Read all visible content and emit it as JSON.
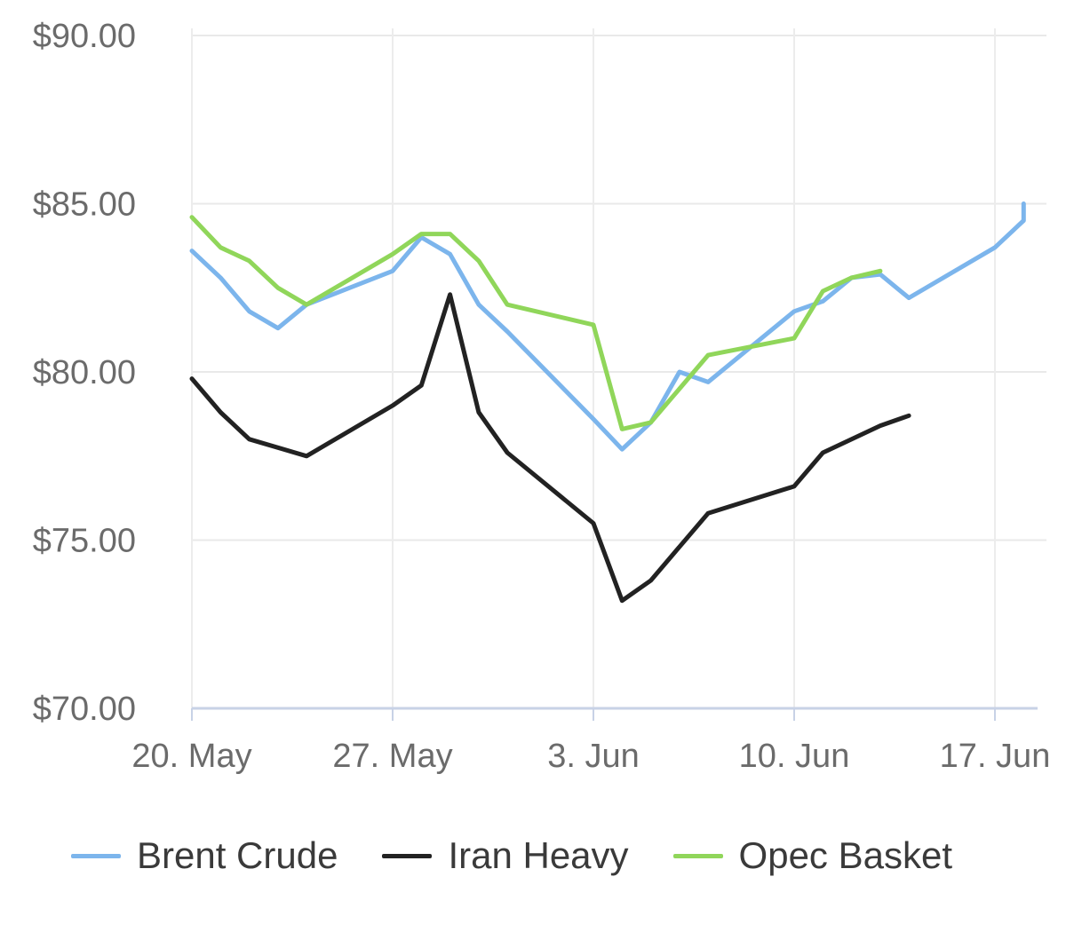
{
  "chart_data": {
    "type": "line",
    "title": "",
    "xlabel": "",
    "ylabel": "",
    "ylim": [
      70,
      90
    ],
    "xlim": [
      "2019-05-20",
      "2019-06-18"
    ],
    "y_ticks": [
      {
        "value": 90,
        "label": "$90.00"
      },
      {
        "value": 85,
        "label": "$85.00"
      },
      {
        "value": 80,
        "label": "$80.00"
      },
      {
        "value": 75,
        "label": "$75.00"
      },
      {
        "value": 70,
        "label": "$70.00"
      }
    ],
    "x_ticks": [
      {
        "date": "2019-05-20",
        "label": "20. May"
      },
      {
        "date": "2019-05-27",
        "label": "27. May"
      },
      {
        "date": "2019-06-03",
        "label": "3. Jun"
      },
      {
        "date": "2019-06-10",
        "label": "10. Jun"
      },
      {
        "date": "2019-06-17",
        "label": "17. Jun"
      }
    ],
    "grid": true,
    "legend_position": "bottom",
    "series": [
      {
        "name": "Brent Crude",
        "color": "#7cb5ec",
        "points": [
          [
            "2019-05-20",
            83.6
          ],
          [
            "2019-05-21",
            82.8
          ],
          [
            "2019-05-22",
            81.8
          ],
          [
            "2019-05-23",
            81.3
          ],
          [
            "2019-05-24",
            82.0
          ],
          [
            "2019-05-27",
            83.0
          ],
          [
            "2019-05-28",
            84.0
          ],
          [
            "2019-05-29",
            83.5
          ],
          [
            "2019-05-30",
            82.0
          ],
          [
            "2019-05-31",
            81.2
          ],
          [
            "2019-06-03",
            78.6
          ],
          [
            "2019-06-04",
            77.7
          ],
          [
            "2019-06-05",
            78.5
          ],
          [
            "2019-06-06",
            80.0
          ],
          [
            "2019-06-07",
            79.7
          ],
          [
            "2019-06-10",
            81.8
          ],
          [
            "2019-06-11",
            82.1
          ],
          [
            "2019-06-12",
            82.8
          ],
          [
            "2019-06-13",
            82.9
          ],
          [
            "2019-06-14",
            82.2
          ],
          [
            "2019-06-17",
            83.7
          ],
          [
            "2019-06-18",
            84.5
          ],
          [
            "2019-06-18",
            85.0
          ]
        ]
      },
      {
        "name": "Iran Heavy",
        "color": "#222222",
        "points": [
          [
            "2019-05-20",
            79.8
          ],
          [
            "2019-05-21",
            78.8
          ],
          [
            "2019-05-22",
            78.0
          ],
          [
            "2019-05-24",
            77.5
          ],
          [
            "2019-05-27",
            79.0
          ],
          [
            "2019-05-28",
            79.6
          ],
          [
            "2019-05-29",
            82.3
          ],
          [
            "2019-05-30",
            78.8
          ],
          [
            "2019-05-31",
            77.6
          ],
          [
            "2019-06-03",
            75.5
          ],
          [
            "2019-06-04",
            73.2
          ],
          [
            "2019-06-05",
            73.8
          ],
          [
            "2019-06-07",
            75.8
          ],
          [
            "2019-06-10",
            76.6
          ],
          [
            "2019-06-11",
            77.6
          ],
          [
            "2019-06-13",
            78.4
          ],
          [
            "2019-06-14",
            78.7
          ]
        ]
      },
      {
        "name": "Opec Basket",
        "color": "#90d65a",
        "points": [
          [
            "2019-05-20",
            84.6
          ],
          [
            "2019-05-21",
            83.7
          ],
          [
            "2019-05-22",
            83.3
          ],
          [
            "2019-05-23",
            82.5
          ],
          [
            "2019-05-24",
            82.0
          ],
          [
            "2019-05-27",
            83.5
          ],
          [
            "2019-05-28",
            84.1
          ],
          [
            "2019-05-29",
            84.1
          ],
          [
            "2019-05-30",
            83.3
          ],
          [
            "2019-05-31",
            82.0
          ],
          [
            "2019-06-03",
            81.4
          ],
          [
            "2019-06-04",
            78.3
          ],
          [
            "2019-06-05",
            78.5
          ],
          [
            "2019-06-07",
            80.5
          ],
          [
            "2019-06-10",
            81.0
          ],
          [
            "2019-06-11",
            82.4
          ],
          [
            "2019-06-12",
            82.8
          ],
          [
            "2019-06-13",
            83.0
          ]
        ]
      }
    ]
  }
}
